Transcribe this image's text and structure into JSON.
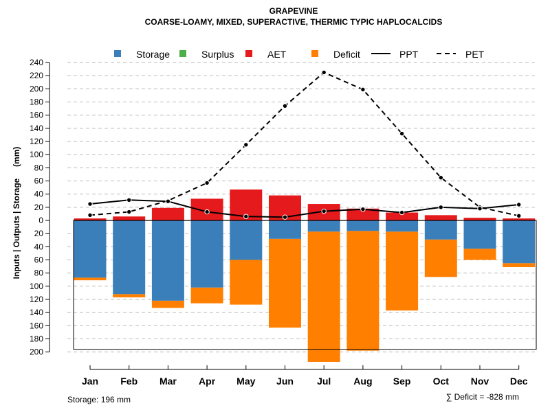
{
  "chart_data": {
    "type": "bar",
    "title": "GRAPEVINE",
    "subtitle": "COARSE-LOAMY, MIXED, SUPERACTIVE, THERMIC TYPIC HAPLOCALCIDS",
    "ylabel": "Inputs | Outputs | Storage     (mm)",
    "categories": [
      "Jan",
      "Feb",
      "Mar",
      "Apr",
      "May",
      "Jun",
      "Jul",
      "Aug",
      "Sep",
      "Oct",
      "Nov",
      "Dec"
    ],
    "upper_ticks": [
      "240",
      "220",
      "200",
      "180",
      "160",
      "140",
      "120",
      "100",
      "80",
      "60",
      "40",
      "20",
      "0"
    ],
    "lower_ticks": [
      "20",
      "40",
      "60",
      "80",
      "100",
      "120",
      "140",
      "160",
      "180",
      "200"
    ],
    "upper_range": [
      0,
      240
    ],
    "lower_range": [
      0,
      200
    ],
    "legend": {
      "storage": "Storage",
      "surplus": "Surplus",
      "aet": "AET",
      "deficit": "Deficit",
      "ppt": "PPT",
      "pet": "PET"
    },
    "colors": {
      "storage": "#3a7fba",
      "surplus": "#4daf4a",
      "aet": "#e41a1c",
      "deficit": "#ff7f00",
      "grid": "#bbbbbb",
      "line": "#000000"
    },
    "series": [
      {
        "name": "AET",
        "values": [
          3,
          6,
          19,
          33,
          47,
          38,
          25,
          18,
          12,
          8,
          4,
          3
        ]
      },
      {
        "name": "Storage",
        "values": [
          87,
          112,
          122,
          102,
          60,
          28,
          17,
          16,
          17,
          29,
          43,
          65
        ]
      },
      {
        "name": "Deficit",
        "values": [
          91,
          117,
          133,
          126,
          128,
          163,
          215,
          198,
          137,
          86,
          60,
          71
        ]
      },
      {
        "name": "PPT",
        "values": [
          25,
          31,
          29,
          13,
          6,
          5,
          14,
          17,
          12,
          20,
          18,
          24
        ]
      },
      {
        "name": "PET",
        "values": [
          8,
          13,
          30,
          57,
          115,
          174,
          225,
          199,
          132,
          65,
          20,
          7
        ]
      }
    ],
    "storage_capacity": 196,
    "footnote_left": "Storage: 196 mm",
    "footnote_right": "∑ Deficit = -828 mm"
  }
}
